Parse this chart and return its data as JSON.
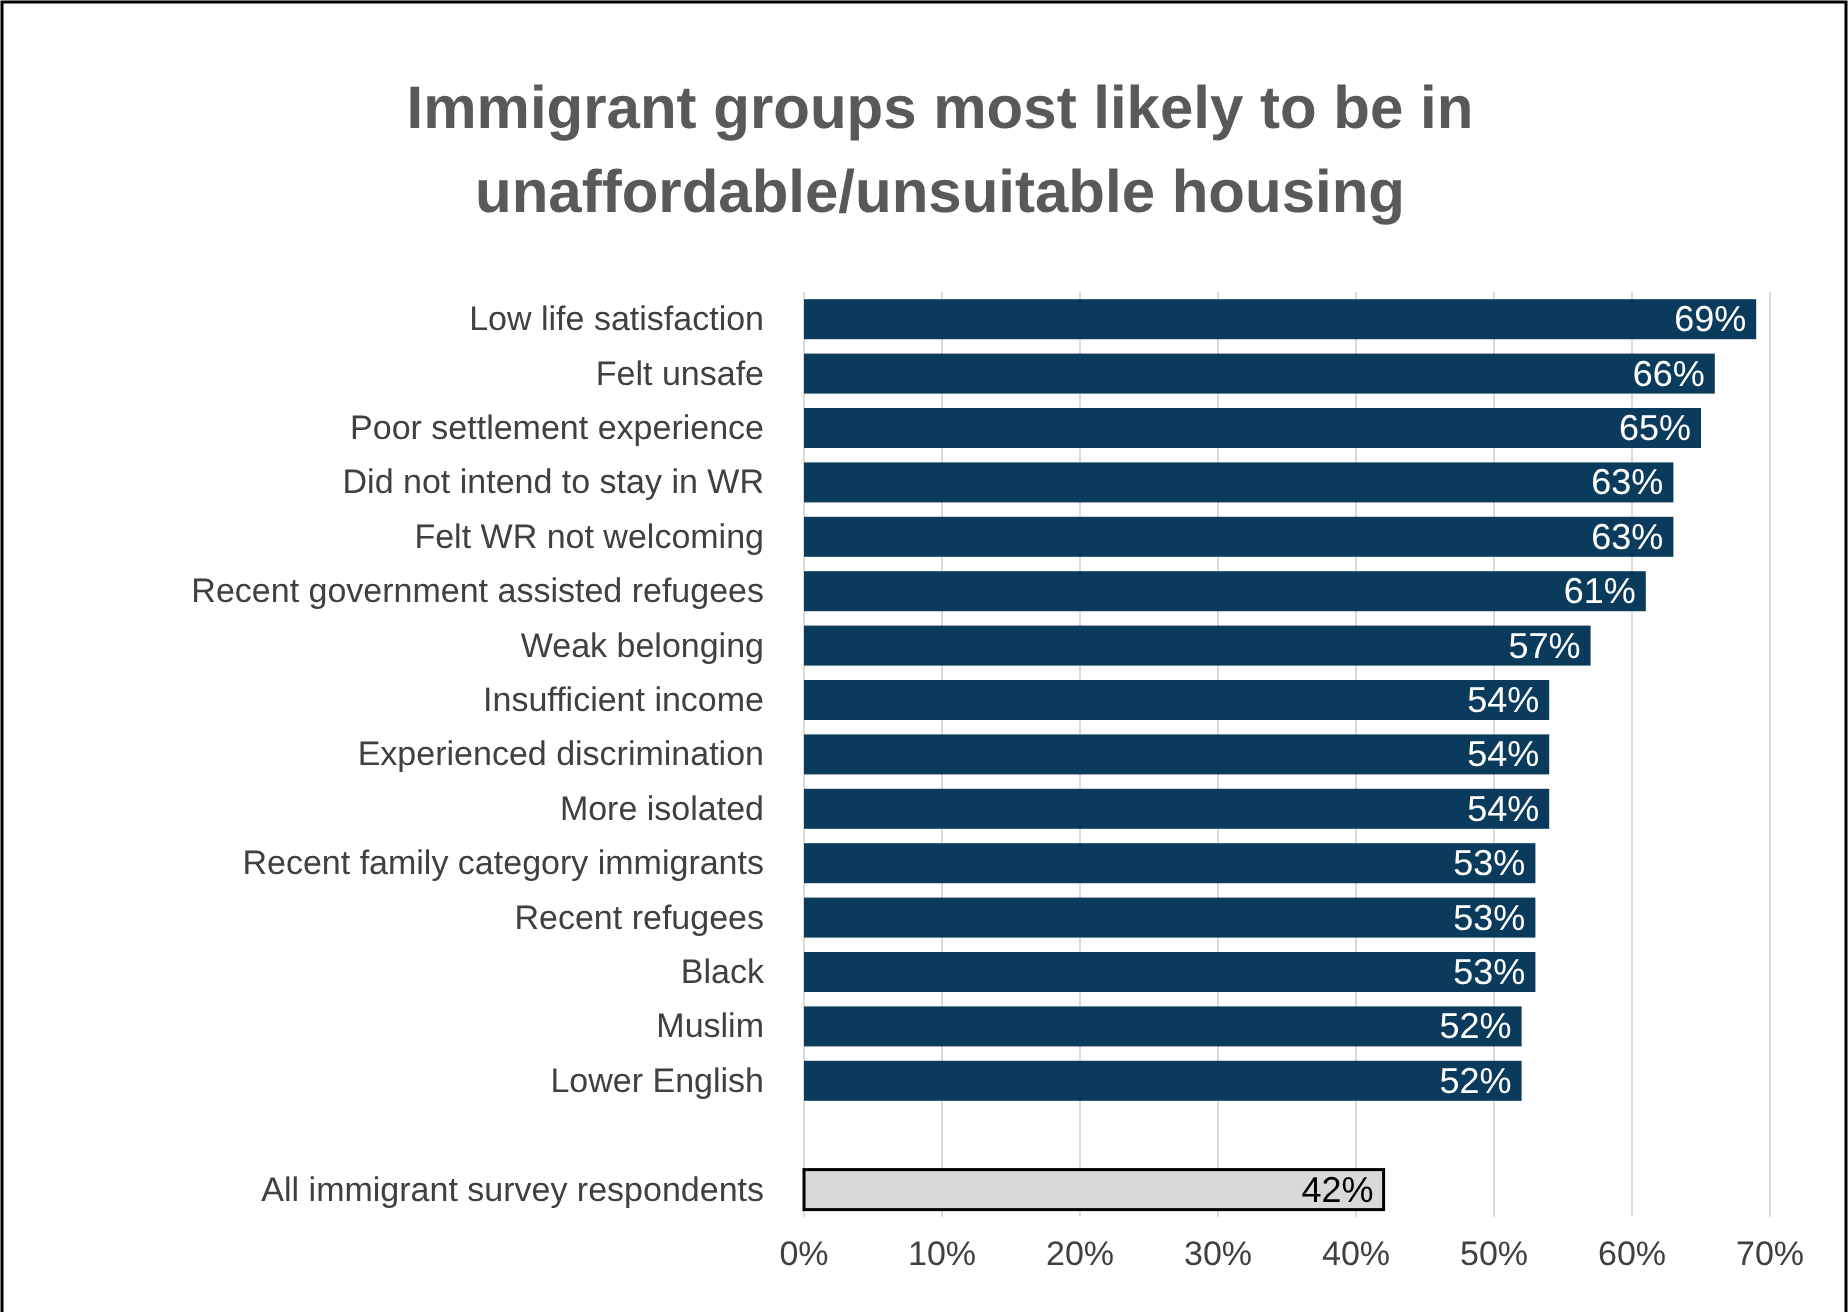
{
  "chart_data": {
    "type": "bar",
    "orientation": "horizontal",
    "title": "Immigrant groups most likely to be in unaffordable/unsuitable housing",
    "categories": [
      "Low life satisfaction",
      "Felt unsafe",
      "Poor settlement experience",
      "Did not intend to stay in WR",
      "Felt WR not welcoming",
      "Recent government assisted refugees",
      "Weak belonging",
      "Insufficient income",
      "Experienced discrimination",
      "More isolated",
      "Recent family category immigrants",
      "Recent refugees",
      "Black",
      "Muslim",
      "Lower English",
      null,
      "All immigrant survey respondents"
    ],
    "values": [
      69,
      66,
      65,
      63,
      63,
      61,
      57,
      54,
      54,
      54,
      53,
      53,
      53,
      52,
      52,
      null,
      42
    ],
    "value_labels": [
      "69%",
      "66%",
      "65%",
      "63%",
      "63%",
      "61%",
      "57%",
      "54%",
      "54%",
      "54%",
      "53%",
      "53%",
      "53%",
      "52%",
      "52%",
      null,
      "42%"
    ],
    "colors": [
      "#0b3b5c",
      "#0b3b5c",
      "#0b3b5c",
      "#0b3b5c",
      "#0b3b5c",
      "#0b3b5c",
      "#0b3b5c",
      "#0b3b5c",
      "#0b3b5c",
      "#0b3b5c",
      "#0b3b5c",
      "#0b3b5c",
      "#0b3b5c",
      "#0b3b5c",
      "#0b3b5c",
      null,
      "#d9d9d9"
    ],
    "xlim": [
      0,
      70
    ],
    "xticks": [
      {
        "value": 0,
        "label": "0%"
      },
      {
        "value": 10,
        "label": "10%"
      },
      {
        "value": 20,
        "label": "20%"
      },
      {
        "value": 30,
        "label": "30%"
      },
      {
        "value": 40,
        "label": "40%"
      },
      {
        "value": 50,
        "label": "50%"
      },
      {
        "value": 60,
        "label": "60%"
      },
      {
        "value": 70,
        "label": "70%"
      }
    ],
    "grid": "x"
  }
}
